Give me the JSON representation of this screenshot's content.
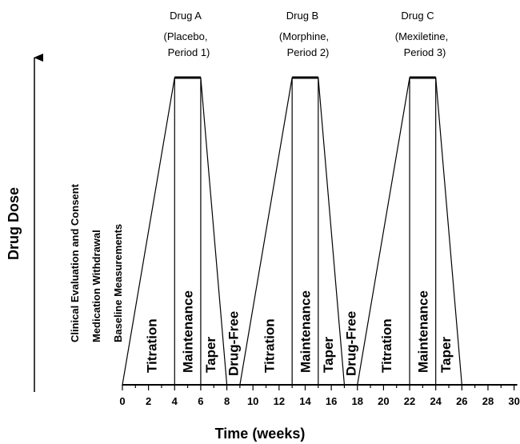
{
  "axes": {
    "y_label": "Drug Dose",
    "x_label": "Time (weeks)",
    "x_ticks": [
      "0",
      "2",
      "4",
      "6",
      "8",
      "10",
      "12",
      "14",
      "16",
      "18",
      "20",
      "22",
      "24",
      "26",
      "28",
      "30"
    ]
  },
  "headers": [
    {
      "drug": "Drug A",
      "detail_1": "(Placebo,",
      "detail_2": "Period 1)"
    },
    {
      "drug": "Drug B",
      "detail_1": "(Morphine,",
      "detail_2": "Period 2)"
    },
    {
      "drug": "Drug C",
      "detail_1": "(Mexiletine,",
      "detail_2": "Period 3)"
    }
  ],
  "preparation": [
    "Clinical Evaluation and Consent",
    "Medication Withdrawal",
    "Baseline Measurements"
  ],
  "periods": [
    {
      "titration": [
        0,
        4
      ],
      "maintenance": [
        4,
        6
      ],
      "taper": [
        6,
        8
      ]
    },
    {
      "titration": [
        9,
        13
      ],
      "maintenance": [
        13,
        15
      ],
      "taper": [
        15,
        17
      ]
    },
    {
      "titration": [
        18,
        22
      ],
      "maintenance": [
        22,
        24
      ],
      "taper": [
        24,
        26
      ]
    }
  ],
  "drug_free": [
    [
      8,
      9
    ],
    [
      17,
      18
    ]
  ],
  "phase_labels": {
    "titration": "Titration",
    "maintenance": "Maintenance",
    "taper": "Taper",
    "drug_free": "Drug-Free"
  }
}
